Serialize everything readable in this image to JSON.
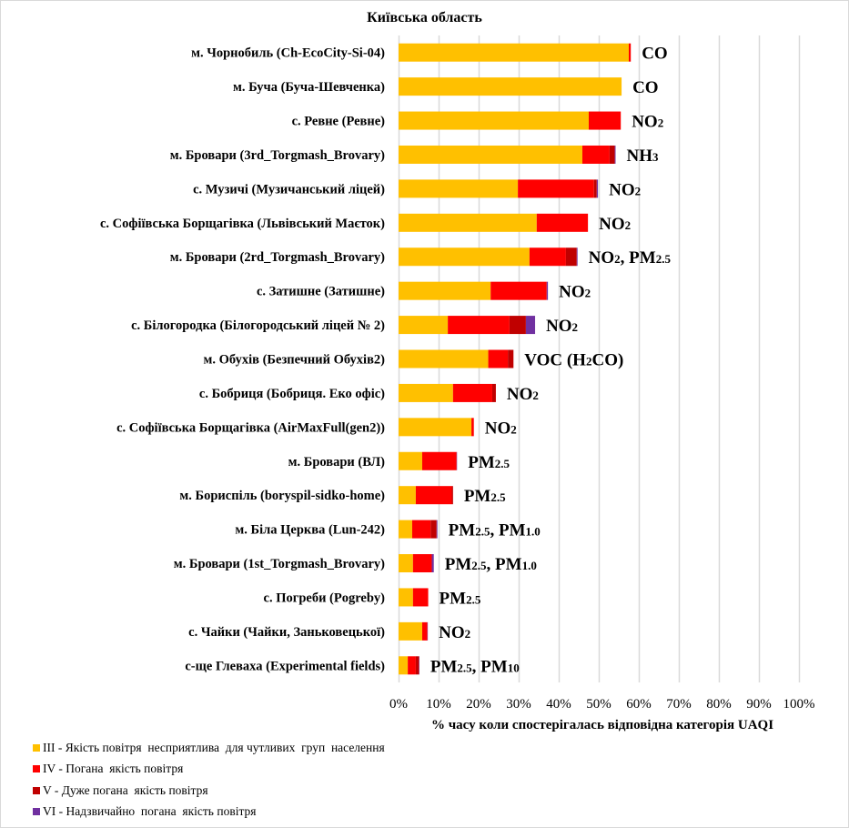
{
  "chart_data": {
    "type": "bar",
    "orientation": "horizontal",
    "stacked": true,
    "title": "Київська область",
    "xlabel": "% часу коли спостерігалась відповідна категорія UAQI",
    "ylabel": "",
    "xlim": [
      0,
      100
    ],
    "xticks": [
      "0%",
      "10%",
      "20%",
      "30%",
      "40%",
      "50%",
      "60%",
      "70%",
      "80%",
      "90%",
      "100%"
    ],
    "grid": true,
    "legend_position": "bottom-left",
    "categories": [
      "м. Чорнобиль (Ch-EcoCity-Si-04)",
      "м. Буча (Буча-Шевченка)",
      "с. Ревне (Ревне)",
      "м. Бровари (3rd_Torgmash_Brovary)",
      "с. Музичі (Музичанський ліцей)",
      "с. Софіївська Борщагівка (Львівський Маєток)",
      "м. Бровари (2rd_Torgmash_Brovary)",
      "с. Затишне (Затишне)",
      "с. Білогородка (Білогородський ліцей № 2)",
      "м. Обухів (Безпечний Обухів2)",
      "с. Бобриця (Бобриця. Еко офіс)",
      "с. Софіївська Борщагівка (AirMaxFull(gen2))",
      "м. Бровари (ВЛ)",
      "м. Бориспіль (boryspil-sidko-home)",
      "м. Біла Церква (Lun-242)",
      "м. Бровари (1st_Torgmash_Brovary)",
      "с. Погреби (Pogreby)",
      "с. Чайки (Чайки, Заньковецької)",
      "с-ще Глеваха (Experimental fields)"
    ],
    "series": [
      {
        "name": "III - Якість повітря  несприятлива  для чутливих  груп  населення",
        "color": "#FFC000",
        "values": [
          57.5,
          55.7,
          47.5,
          45.9,
          29.8,
          34.5,
          32.7,
          23.0,
          12.3,
          22.4,
          13.6,
          18.2,
          5.9,
          4.3,
          3.4,
          3.6,
          3.6,
          5.9,
          2.3
        ]
      },
      {
        "name": "IV - Погана  якість повітря",
        "color": "#FF0000",
        "values": [
          0.5,
          0.0,
          8.0,
          6.8,
          19.0,
          12.8,
          9.1,
          14.0,
          15.4,
          4.9,
          9.8,
          0.6,
          8.6,
          9.0,
          4.6,
          4.7,
          3.8,
          1.3,
          2.0
        ]
      },
      {
        "name": "V - Дуже погана  якість повітря",
        "color": "#C00000",
        "values": [
          0.0,
          0.0,
          0.0,
          1.3,
          0.7,
          0.0,
          2.7,
          0.0,
          4.1,
          1.4,
          0.9,
          0.0,
          0.0,
          0.3,
          1.5,
          0.0,
          0.0,
          0.0,
          0.8
        ]
      },
      {
        "name": "VI - Надзвичайно  погана  якість повітря",
        "color": "#7030A0",
        "values": [
          0.0,
          0.0,
          0.0,
          0.2,
          0.3,
          0.0,
          0.2,
          0.3,
          2.3,
          0.0,
          0.0,
          0.0,
          0.1,
          0.0,
          0.2,
          0.5,
          0.0,
          0.1,
          0.1
        ]
      }
    ],
    "annotations": [
      {
        "main": "CO",
        "parts": [
          [
            "CO",
            ""
          ]
        ]
      },
      {
        "main": "CO",
        "parts": [
          [
            "CO",
            ""
          ]
        ]
      },
      {
        "main": "NO2",
        "parts": [
          [
            "NO",
            "2"
          ]
        ]
      },
      {
        "main": "NH3",
        "parts": [
          [
            "NH",
            "3"
          ]
        ]
      },
      {
        "main": "NO2",
        "parts": [
          [
            "NO",
            "2"
          ]
        ]
      },
      {
        "main": "NO2",
        "parts": [
          [
            "NO",
            "2"
          ]
        ]
      },
      {
        "main": "NO2, PM2.5",
        "parts": [
          [
            "NO",
            "2"
          ],
          [
            ", PM",
            "2.5"
          ]
        ]
      },
      {
        "main": "NO2",
        "parts": [
          [
            "NO",
            "2"
          ]
        ]
      },
      {
        "main": "NO2",
        "parts": [
          [
            "NO",
            "2"
          ]
        ]
      },
      {
        "main": "VOC (H2CO)",
        "parts": [
          [
            "VOC (H",
            "2"
          ],
          [
            "CO)",
            ""
          ]
        ]
      },
      {
        "main": "NO2",
        "parts": [
          [
            "NO",
            "2"
          ]
        ]
      },
      {
        "main": "NO2",
        "parts": [
          [
            "NO",
            "2"
          ]
        ]
      },
      {
        "main": "PM2.5",
        "parts": [
          [
            "PM",
            "2.5"
          ]
        ]
      },
      {
        "main": "PM2.5",
        "parts": [
          [
            "PM",
            "2.5"
          ]
        ]
      },
      {
        "main": "PM2.5, PM1.0",
        "parts": [
          [
            "PM",
            "2.5"
          ],
          [
            ", PM",
            "1.0"
          ]
        ]
      },
      {
        "main": "PM2.5, PM1.0",
        "parts": [
          [
            "PM",
            "2.5"
          ],
          [
            ", PM",
            "1.0"
          ]
        ]
      },
      {
        "main": "PM2.5",
        "parts": [
          [
            "PM",
            "2.5"
          ]
        ]
      },
      {
        "main": "NO2",
        "parts": [
          [
            "NO",
            "2"
          ]
        ]
      },
      {
        "main": "PM2.5, PM10",
        "parts": [
          [
            "PM",
            "2.5"
          ],
          [
            ", PM",
            "10"
          ]
        ]
      }
    ]
  }
}
